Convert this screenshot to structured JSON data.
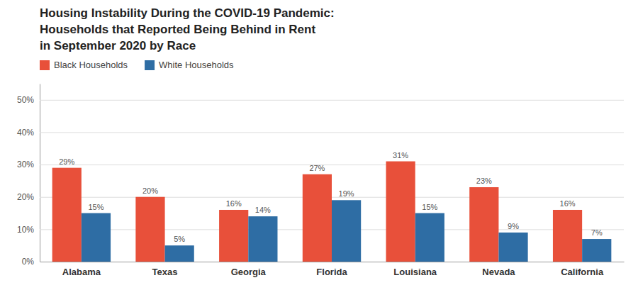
{
  "chart_data": {
    "type": "bar",
    "title": "Housing Instability During the COVID-19 Pandemic:\nHouseholds that Reported Being Behind in Rent\nin September 2020 by Race",
    "categories": [
      "Alabama",
      "Texas",
      "Georgia",
      "Florida",
      "Louisiana",
      "Nevada",
      "California"
    ],
    "series": [
      {
        "name": "Black Households",
        "color": "#E8503A",
        "values": [
          29,
          20,
          16,
          27,
          31,
          23,
          16
        ],
        "value_labels": [
          "29%",
          "20%",
          "16%",
          "27%",
          "31%",
          "23%",
          "16%"
        ]
      },
      {
        "name": "White Households",
        "color": "#2E6DA4",
        "values": [
          15,
          5,
          14,
          19,
          15,
          9,
          7
        ],
        "value_labels": [
          "15%",
          "5%",
          "14%",
          "19%",
          "15%",
          "9%",
          "7%"
        ]
      }
    ],
    "ylim": [
      0,
      55
    ],
    "yticks": [
      {
        "value": 0,
        "label": "0%"
      },
      {
        "value": 10,
        "label": "10%"
      },
      {
        "value": 20,
        "label": "20%"
      },
      {
        "value": 30,
        "label": "30%"
      },
      {
        "value": 40,
        "label": "40%"
      },
      {
        "value": 50,
        "label": "50%"
      }
    ],
    "grid": true,
    "legend": "top-left",
    "data_labels": true
  }
}
